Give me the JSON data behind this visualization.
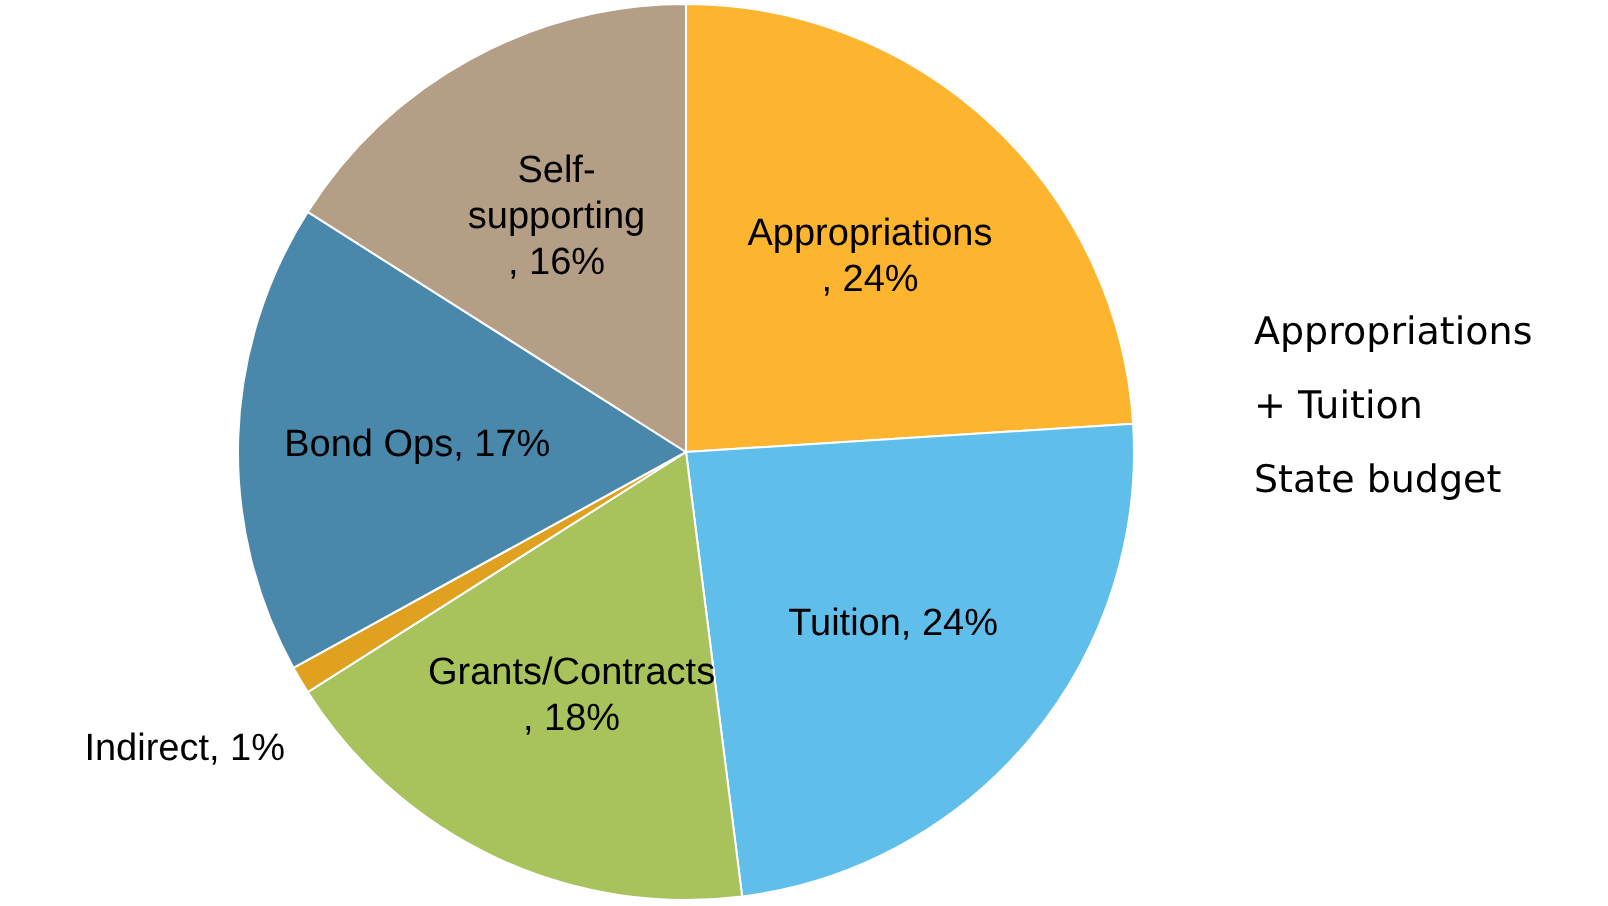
{
  "chart_data": {
    "type": "pie",
    "categories": [
      "Appropriations",
      "Tuition",
      "Grants/Contracts",
      "Indirect",
      "Bond Ops",
      "Self-supporting"
    ],
    "values": [
      24,
      24,
      18,
      1,
      17,
      16
    ],
    "colors": [
      "#fdb42e",
      "#5fbfea",
      "#a8c25c",
      "#e0a020",
      "#4a88ab",
      "#b49e86"
    ],
    "value_labels": [
      ", 24%",
      ", 24%",
      ", 18%",
      ", 1%",
      ", 17%",
      ", 16%"
    ],
    "annotations": [
      "Appropriations",
      "+ Tuition",
      "State budget"
    ]
  }
}
